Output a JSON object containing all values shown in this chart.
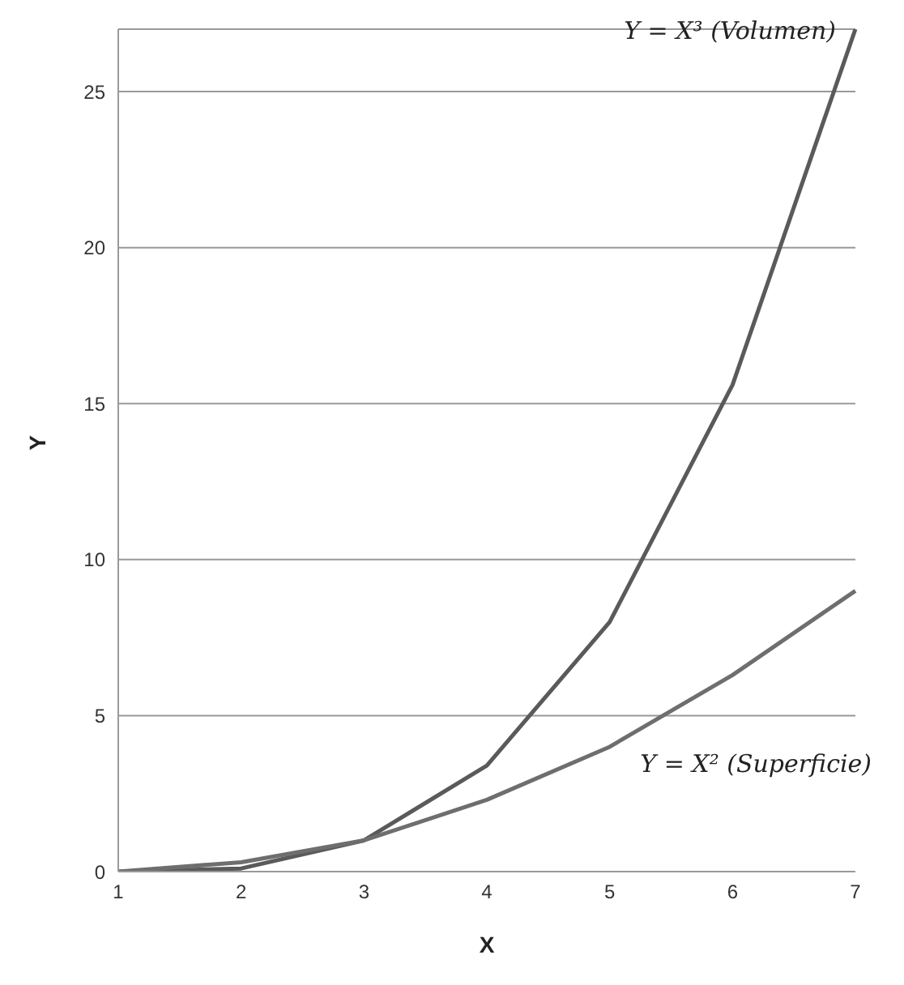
{
  "chart_data": {
    "type": "line",
    "xlabel": "X",
    "ylabel": "Y",
    "categories": [
      "1",
      "2",
      "3",
      "4",
      "5",
      "6",
      "7"
    ],
    "series": [
      {
        "name": "Y = X³ (Volumen)",
        "color": "#5a5a5a",
        "values": [
          0,
          0.1,
          1,
          3.4,
          8,
          15.6,
          27
        ]
      },
      {
        "name": "Y = X² (Superficie)",
        "color": "#6e6e6e",
        "values": [
          0,
          0.3,
          1,
          2.3,
          4,
          6.3,
          9
        ]
      }
    ],
    "ylim": [
      0,
      27
    ],
    "yticks": [
      0,
      5,
      10,
      15,
      20,
      25
    ],
    "grid": "y",
    "legend": false,
    "marker": "none",
    "line_style": "solid"
  }
}
